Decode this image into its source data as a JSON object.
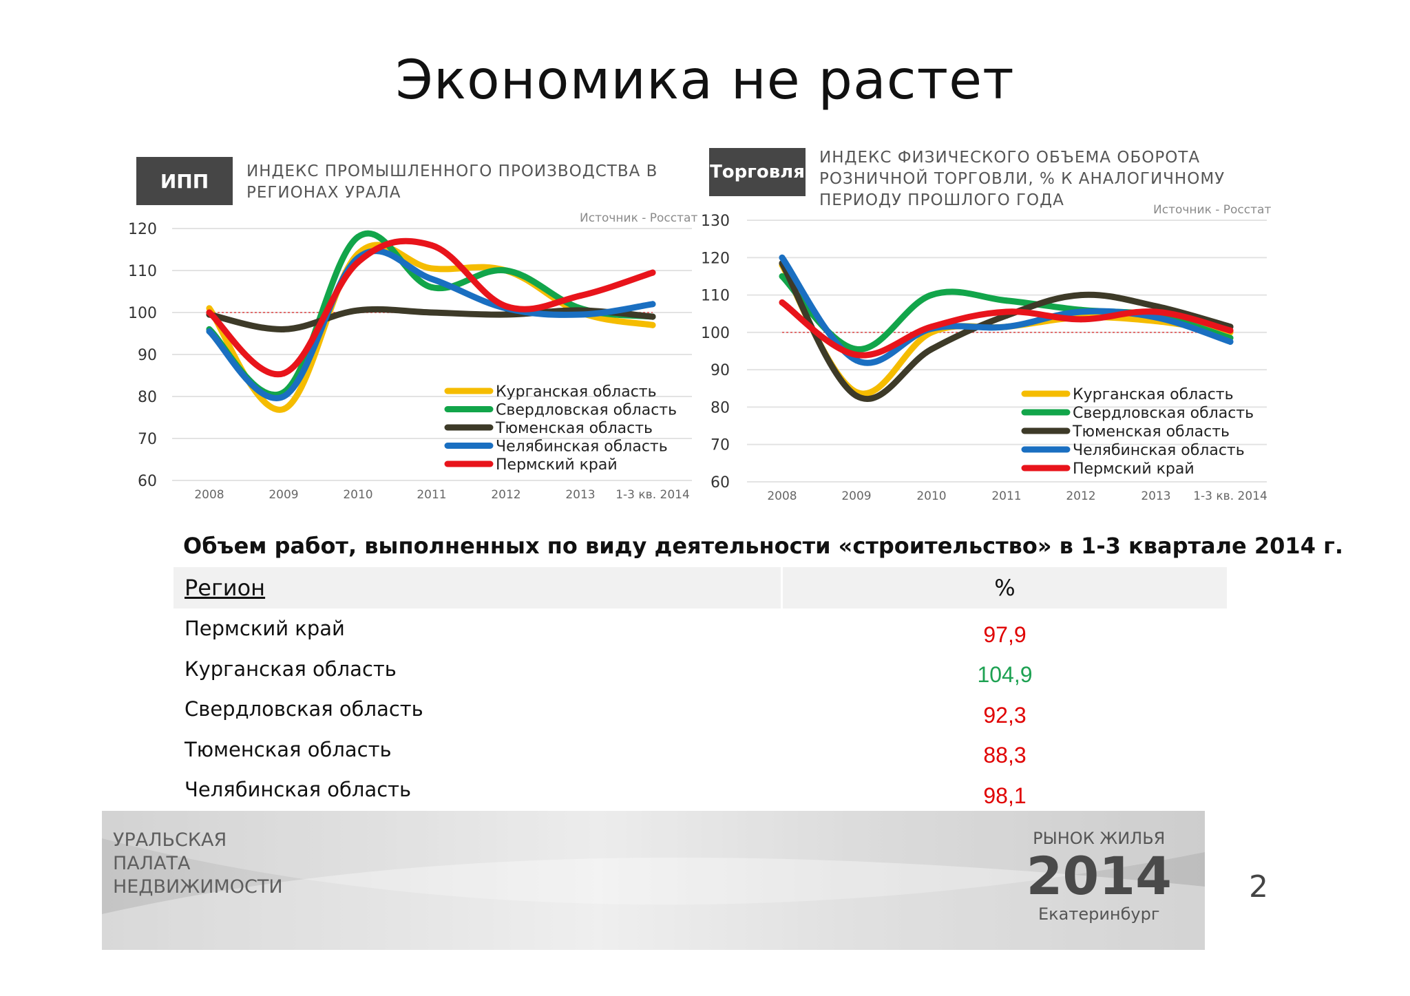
{
  "page": {
    "title": "Экономика не растет",
    "page_number": "2"
  },
  "charts_meta": [
    {
      "tag": "ИПП",
      "heading_lines": [
        "ИНДЕКС ПРОМЫШЛЕННОГО ПРОИЗВОДСТВА В",
        "РЕГИОНАХ УРАЛА"
      ],
      "source": "Источник - Росстат"
    },
    {
      "tag": "Торговля",
      "heading_lines": [
        "ИНДЕКС ФИЗИЧЕСКОГО ОБЪЕМА ОБОРОТА",
        "РОЗНИЧНОЙ ТОРГОВЛИ, % К АНАЛОГИЧНОМУ",
        "ПЕРИОДУ ПРОШЛОГО ГОДА"
      ],
      "source": "Источник - Росстат"
    }
  ],
  "chart_data": [
    {
      "type": "line",
      "title": "ИНДЕКС ПРОМЫШЛЕННОГО ПРОИЗВОДСТВА В РЕГИОНАХ УРАЛА",
      "categories": [
        "2008",
        "2009",
        "2010",
        "2011",
        "2012",
        "2013",
        "1-3 кв. 2014"
      ],
      "ylim": [
        60,
        120
      ],
      "yticks": [
        60,
        70,
        80,
        90,
        100,
        110,
        120
      ],
      "reference_line": 100,
      "legend_position": "bottom-right",
      "series": [
        {
          "name": "Курганская область",
          "color": "#F5BC00",
          "values": [
            101,
            77,
            114,
            110.5,
            110,
            100,
            97
          ]
        },
        {
          "name": "Свердловская область",
          "color": "#12A54A",
          "values": [
            96,
            81,
            118,
            106,
            110,
            101,
            99
          ]
        },
        {
          "name": "Тюменская область",
          "color": "#3D3A28",
          "values": [
            99.5,
            96,
            100.5,
            100,
            99.5,
            100.5,
            99
          ]
        },
        {
          "name": "Челябинская область",
          "color": "#1A6FC1",
          "values": [
            95.5,
            80,
            113,
            108,
            101,
            99.5,
            102
          ]
        },
        {
          "name": "Пермский край",
          "color": "#E8141B",
          "values": [
            100,
            85.5,
            112,
            116,
            101.5,
            104,
            109.5
          ]
        }
      ]
    },
    {
      "type": "line",
      "title": "ИНДЕКС ФИЗИЧЕСКОГО ОБЪЕМА ОБОРОТА РОЗНИЧНОЙ ТОРГОВЛИ, % К АНАЛОГИЧНОМУ ПЕРИОДУ ПРОШЛОГО ГОДА",
      "categories": [
        "2008",
        "2009",
        "2010",
        "2011",
        "2012",
        "2013",
        "1-3 кв. 2014"
      ],
      "ylim": [
        60,
        130
      ],
      "yticks": [
        60,
        70,
        80,
        90,
        100,
        110,
        120,
        130
      ],
      "reference_line": 100,
      "legend_position": "bottom-right",
      "series": [
        {
          "name": "Курганская область",
          "color": "#F5BC00",
          "values": [
            118,
            84,
            100,
            101.5,
            104,
            103,
            100
          ]
        },
        {
          "name": "Свердловская область",
          "color": "#12A54A",
          "values": [
            115,
            95.5,
            110,
            108.5,
            106,
            104.5,
            98.5
          ]
        },
        {
          "name": "Тюменская область",
          "color": "#3D3A28",
          "values": [
            118.5,
            83,
            95.5,
            104.5,
            110,
            107,
            101.5
          ]
        },
        {
          "name": "Челябинская область",
          "color": "#1A6FC1",
          "values": [
            120,
            92.5,
            101,
            101.5,
            105.5,
            104,
            97.5
          ]
        },
        {
          "name": "Пермский край",
          "color": "#E8141B",
          "values": [
            108,
            94,
            101.5,
            105.5,
            103.5,
            105.5,
            100.5
          ]
        }
      ]
    }
  ],
  "table": {
    "subheading": "Объем работ, выполненных по виду деятельности «строительство» в 1-3 квартале 2014 г.",
    "col_region": "Регион",
    "col_value": "%",
    "rows": [
      {
        "region": "Пермский край",
        "value": "97,9",
        "color": "#E00000"
      },
      {
        "region": "Курганская область",
        "value": "104,9",
        "color": "#1DA152"
      },
      {
        "region": "Свердловская область",
        "value": "92,3",
        "color": "#E00000"
      },
      {
        "region": "Тюменская область",
        "value": "88,3",
        "color": "#E00000"
      },
      {
        "region": "Челябинская область",
        "value": "98,1",
        "color": "#E00000"
      }
    ]
  },
  "footer": {
    "org_lines": [
      "УРАЛЬСКАЯ",
      "ПАЛАТА",
      "НЕДВИЖИМОСТИ"
    ],
    "event_line1": "РЫНОК ЖИЛЬЯ",
    "event_year": "2014",
    "event_city": "Екатеринбург"
  }
}
